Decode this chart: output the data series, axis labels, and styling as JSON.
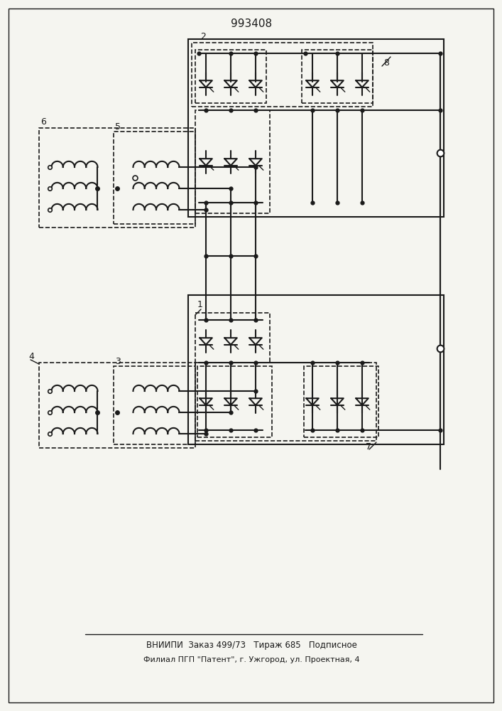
{
  "title": "993408",
  "footer_line1": "ВНИИПИ  Заказ 499/73   Тираж 685   Подписное",
  "footer_line2": "Филиал ПГП \"Патент\", г. Ужгород, ул. Проектная, 4",
  "bg_color": "#f5f5f0",
  "line_color": "#1a1a1a",
  "line_width": 1.5,
  "thin_line": 1.0,
  "dashed_lw": 1.2
}
